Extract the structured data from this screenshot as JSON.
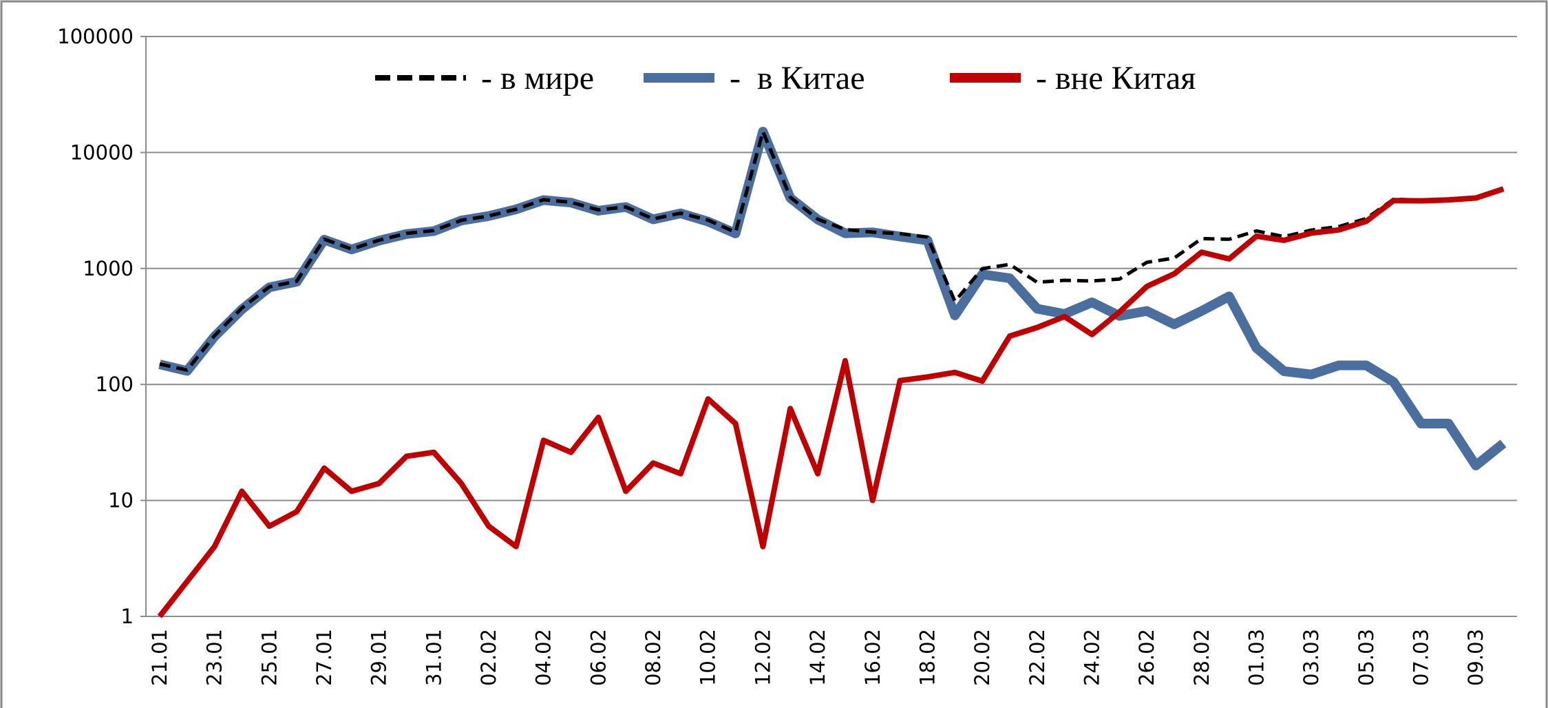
{
  "chart_data": {
    "type": "line",
    "categories": [
      "21.01",
      null,
      "23.01",
      null,
      "25.01",
      null,
      "27.01",
      null,
      "29.01",
      null,
      "31.01",
      null,
      "02.02",
      null,
      "04.02",
      null,
      "06.02",
      null,
      "08.02",
      null,
      "10.02",
      null,
      "12.02",
      null,
      "14.02",
      null,
      "16.02",
      null,
      "18.02",
      null,
      "20.02",
      null,
      "22.02",
      null,
      "24.02",
      null,
      "26.02",
      null,
      "28.02",
      null,
      "01.03",
      null,
      "03.03",
      null,
      "05.03",
      null,
      "07.03",
      null,
      "09.03",
      null
    ],
    "series": [
      {
        "name": "- в мире",
        "color": "#000000",
        "line_style": "dashed",
        "values": [
          150,
          133,
          263,
          456,
          694,
          777,
          1790,
          1471,
          1751,
          2005,
          2125,
          2604,
          2835,
          3239,
          3920,
          3720,
          3195,
          3397,
          2673,
          3004,
          2613,
          2053,
          15145,
          4112,
          2658,
          2168,
          2058,
          1994,
          1865,
          521,
          996,
          1084,
          760,
          790,
          780,
          810,
          1130,
          1230,
          1810,
          1785,
          2106,
          1880,
          2142,
          2296,
          2696,
          3955,
          3876,
          3946,
          4070,
          4881
        ]
      },
      {
        "name": "-  в Китае",
        "color": "#4a6f9e",
        "line_style": "solid",
        "values": [
          149,
          131,
          259,
          444,
          688,
          769,
          1771,
          1459,
          1737,
          1981,
          2099,
          2590,
          2829,
          3235,
          3887,
          3694,
          3143,
          3385,
          2652,
          2987,
          2538,
          2007,
          15141,
          4050,
          2641,
          2008,
          2048,
          1886,
          1749,
          394,
          889,
          823,
          450,
          405,
          510,
          390,
          430,
          330,
          430,
          575,
          206,
          130,
          122,
          146,
          146,
          105,
          46,
          46,
          20,
          31
        ]
      },
      {
        "name": "- вне Китая",
        "color": "#c00000",
        "line_style": "solid",
        "values": [
          1,
          2,
          4,
          12,
          6,
          8,
          19,
          12,
          14,
          24,
          26,
          14,
          6,
          4,
          33,
          26,
          52,
          12,
          21,
          17,
          75,
          46,
          4,
          62,
          17,
          160,
          10,
          108,
          116,
          127,
          107,
          261,
          310,
          385,
          270,
          420,
          700,
          900,
          1380,
          1210,
          1900,
          1750,
          2020,
          2150,
          2550,
          3850,
          3830,
          3900,
          4050,
          4850
        ]
      }
    ],
    "ylim": [
      1,
      100000
    ],
    "yticks": [
      1,
      10,
      100,
      1000,
      10000,
      100000
    ],
    "yscale": "log",
    "grid": true,
    "legend": "top"
  }
}
